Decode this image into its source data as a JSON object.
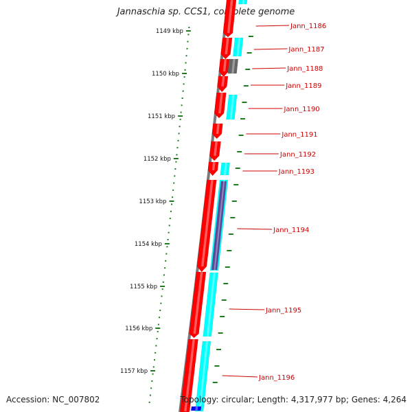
{
  "title": "Jannaschia sp. CCS1, complete genome",
  "accession_text": "Accession: NC_007802",
  "summary_text": "Topology: circular; Length: 4,317,977 bp; Genes: 4,264",
  "colors": {
    "backbone": "#7a7a7a",
    "scale_ticks": "#1e7a1e",
    "forward_cds": "#ff0000",
    "forward_orf": "#00ffff",
    "reverse_orf": "#00ffff",
    "reverse_cds": "#0000ff",
    "gray_feature": "#666666",
    "purple_feature": "#5a4a9a",
    "label": "#cc0000"
  },
  "scale": {
    "unit": "kbp",
    "ticks": [
      {
        "label": "1149 kbp"
      },
      {
        "label": "1150 kbp"
      },
      {
        "label": "1151 kbp"
      },
      {
        "label": "1152 kbp"
      },
      {
        "label": "1153 kbp"
      },
      {
        "label": "1154 kbp"
      },
      {
        "label": "1155 kbp"
      },
      {
        "label": "1156 kbp"
      },
      {
        "label": "1157 kbp"
      }
    ]
  },
  "genes": [
    {
      "label": "Jann_1186"
    },
    {
      "label": "Jann_1187"
    },
    {
      "label": "Jann_1188"
    },
    {
      "label": "Jann_1189"
    },
    {
      "label": "Jann_1190"
    },
    {
      "label": "Jann_1191"
    },
    {
      "label": "Jann_1192"
    },
    {
      "label": "Jann_1193"
    },
    {
      "label": "Jann_1194"
    },
    {
      "label": "Jann_1195"
    },
    {
      "label": "Jann_1196"
    }
  ]
}
